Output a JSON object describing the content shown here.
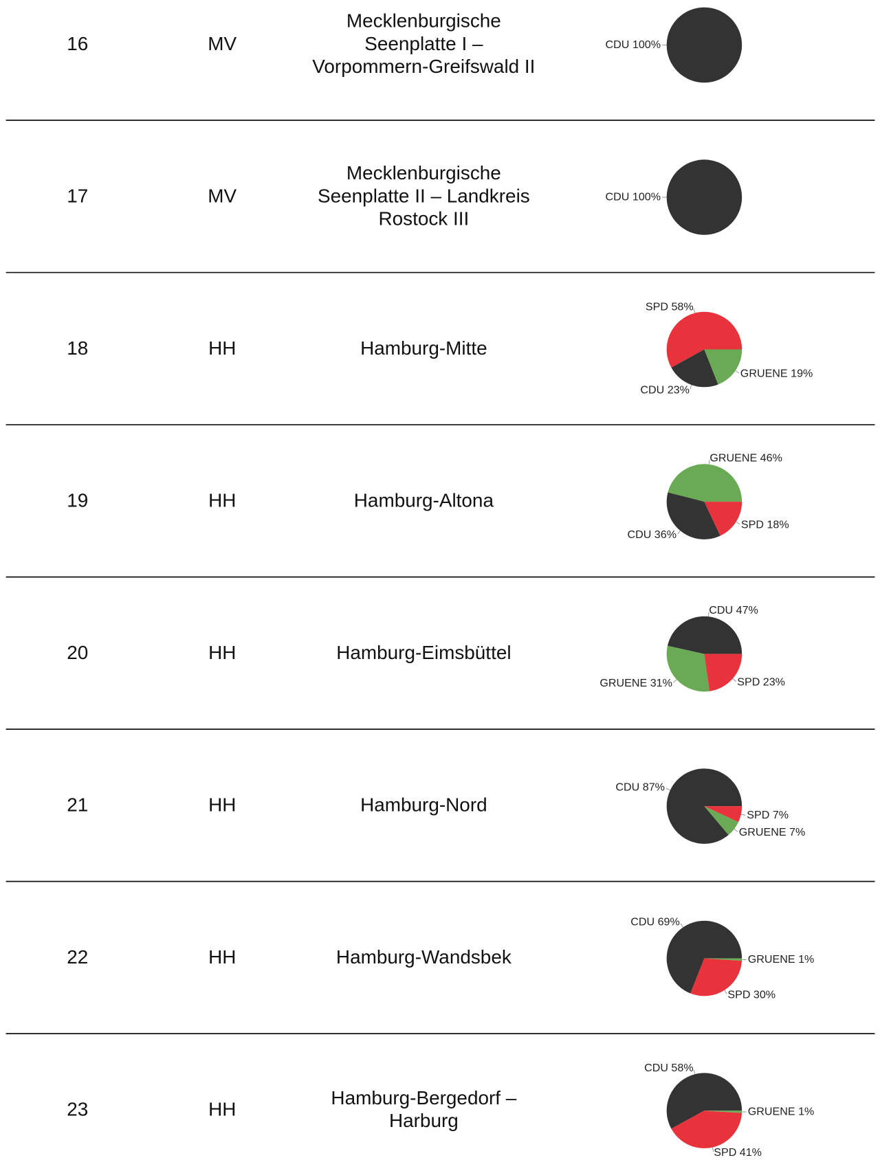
{
  "rows": [
    {
      "number": "16",
      "state": "MV",
      "name": [
        "Mecklenburgische",
        "Seenplatte I –",
        "Vorpommern-Greifswald II"
      ],
      "slices": [
        {
          "label": "CDU 100%",
          "value": 100,
          "color": "#333333"
        }
      ]
    },
    {
      "number": "17",
      "state": "MV",
      "name": [
        "Mecklenburgische",
        "Seenplatte II – Landkreis",
        "Rostock III"
      ],
      "slices": [
        {
          "label": "CDU 100%",
          "value": 100,
          "color": "#333333"
        }
      ]
    },
    {
      "number": "18",
      "state": "HH",
      "name": [
        "Hamburg-Mitte"
      ],
      "slices": [
        {
          "label": "SPD 58%",
          "value": 58,
          "color": "#e8333c"
        },
        {
          "label": "CDU 23%",
          "value": 23,
          "color": "#333333"
        },
        {
          "label": "GRUENE 19%",
          "value": 19,
          "color": "#6aaa55"
        }
      ]
    },
    {
      "number": "19",
      "state": "HH",
      "name": [
        "Hamburg-Altona"
      ],
      "slices": [
        {
          "label": "GRUENE 46%",
          "value": 46,
          "color": "#6aaa55"
        },
        {
          "label": "CDU 36%",
          "value": 36,
          "color": "#333333"
        },
        {
          "label": "SPD 18%",
          "value": 18,
          "color": "#e8333c"
        }
      ]
    },
    {
      "number": "20",
      "state": "HH",
      "name": [
        "Hamburg-Eimsbüttel"
      ],
      "slices": [
        {
          "label": "CDU 47%",
          "value": 47,
          "color": "#333333"
        },
        {
          "label": "GRUENE 31%",
          "value": 31,
          "color": "#6aaa55"
        },
        {
          "label": "SPD 23%",
          "value": 23,
          "color": "#e8333c"
        }
      ]
    },
    {
      "number": "21",
      "state": "HH",
      "name": [
        "Hamburg-Nord"
      ],
      "slices": [
        {
          "label": "CDU 87%",
          "value": 87,
          "color": "#333333"
        },
        {
          "label": "GRUENE 7%",
          "value": 7,
          "color": "#6aaa55"
        },
        {
          "label": "SPD 7%",
          "value": 7,
          "color": "#e8333c"
        }
      ]
    },
    {
      "number": "22",
      "state": "HH",
      "name": [
        "Hamburg-Wandsbek"
      ],
      "slices": [
        {
          "label": "CDU 69%",
          "value": 69,
          "color": "#333333"
        },
        {
          "label": "SPD 30%",
          "value": 30,
          "color": "#e8333c"
        },
        {
          "label": "GRUENE 1%",
          "value": 1,
          "color": "#6aaa55"
        }
      ]
    },
    {
      "number": "23",
      "state": "HH",
      "name": [
        "Hamburg-Bergedorf –",
        "Harburg"
      ],
      "slices": [
        {
          "label": "CDU 58%",
          "value": 58,
          "color": "#333333"
        },
        {
          "label": "SPD 41%",
          "value": 41,
          "color": "#e8333c"
        },
        {
          "label": "GRUENE 1%",
          "value": 1,
          "color": "#6aaa55"
        }
      ]
    }
  ]
}
